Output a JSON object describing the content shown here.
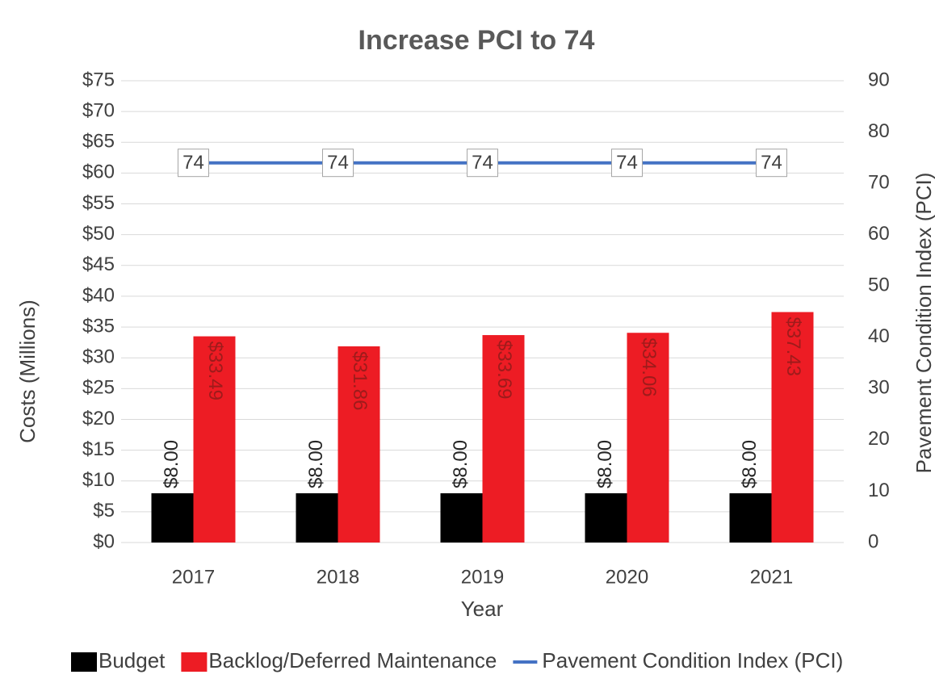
{
  "chart_data": {
    "type": "bar",
    "title": "Increase PCI to 74",
    "x_label": "Year",
    "y_label": "Costs (Millions)",
    "y2_label": "Pavement Condition Index (PCI)",
    "categories": [
      "2017",
      "2018",
      "2019",
      "2020",
      "2021"
    ],
    "series": [
      {
        "name": "Budget",
        "type": "bar",
        "color": "#000000",
        "values": [
          8,
          8,
          8,
          8,
          8
        ],
        "value_labels": [
          "$8.00",
          "$8.00",
          "$8.00",
          "$8.00",
          "$8.00"
        ]
      },
      {
        "name": "Backlog/Deferred Maintenance",
        "type": "bar",
        "color": "#ed1c24",
        "values": [
          33.49,
          31.86,
          33.69,
          34.06,
          37.43
        ],
        "value_labels": [
          "$33.49",
          "$31.86",
          "$33.69",
          "$34.06",
          "$37.43"
        ]
      },
      {
        "name": "Pavement Condition Index (PCI)",
        "type": "line",
        "axis": "y2",
        "color": "#4472c4",
        "values": [
          74,
          74,
          74,
          74,
          74
        ]
      }
    ],
    "ylim": [
      0,
      75
    ],
    "yticks": [
      {
        "value": 0,
        "label": "$0"
      },
      {
        "value": 5,
        "label": "$5"
      },
      {
        "value": 10,
        "label": "$10"
      },
      {
        "value": 15,
        "label": "$15"
      },
      {
        "value": 20,
        "label": "$20"
      },
      {
        "value": 25,
        "label": "$25"
      },
      {
        "value": 30,
        "label": "$30"
      },
      {
        "value": 35,
        "label": "$35"
      },
      {
        "value": 40,
        "label": "$40"
      },
      {
        "value": 45,
        "label": "$45"
      },
      {
        "value": 50,
        "label": "$50"
      },
      {
        "value": 55,
        "label": "$55"
      },
      {
        "value": 60,
        "label": "$60"
      },
      {
        "value": 65,
        "label": "$65"
      },
      {
        "value": 70,
        "label": "$70"
      },
      {
        "value": 75,
        "label": "$75"
      }
    ],
    "y2lim": [
      0,
      90
    ],
    "y2ticks": [
      0,
      10,
      20,
      30,
      40,
      50,
      60,
      70,
      80,
      90
    ],
    "grid": true,
    "legend": "bottom"
  }
}
